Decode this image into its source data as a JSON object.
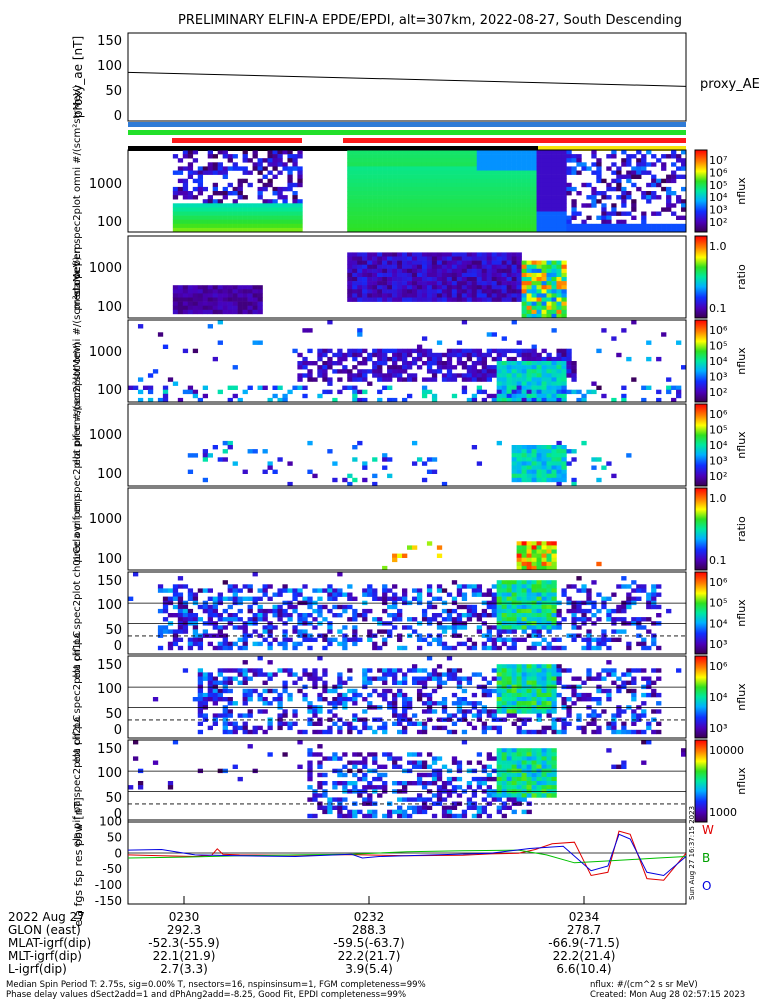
{
  "title": "PRELIMINARY ELFIN-A EPDE/EPDI, alt=307km, 2022-08-27, South Descending",
  "colors": {
    "bar_blue": "#2f7bd6",
    "bar_green": "#22e02a",
    "bar_red": "#ff1a1a",
    "bar_black": "#000000",
    "bar_yellow": "#f5e60a",
    "line_red": "#e00000",
    "line_green": "#00c000",
    "line_blue": "#0000e0"
  },
  "chart_data": [
    {
      "type": "line",
      "panel": "proxy_ae",
      "ylabel": "proxy_ae [nT]",
      "ytick_labels": [
        "150",
        "100",
        "50",
        "0"
      ],
      "ylim": [
        -10,
        160
      ],
      "right_label": "proxy_AE",
      "series": [
        {
          "name": "proxy_AE",
          "x": [
            0.0,
            1.0
          ],
          "values": [
            84,
            57
          ]
        }
      ]
    },
    {
      "type": "heatmap",
      "panel": "ela_pef_en_spec2plot_omni",
      "ylabel": "ela pef en spec2plot omni #/(scm²strMeV)",
      "ytick_labels": [
        "1000",
        "100"
      ],
      "colorbar": {
        "label": "nflux",
        "ticks": [
          "10⁷",
          "10⁶",
          "10⁵",
          "10⁴",
          "10³",
          "10²"
        ]
      }
    },
    {
      "type": "heatmap",
      "panel": "prec_ovr_perp_e",
      "ylabel": "prec ovr perp",
      "ytick_labels": [
        "1000",
        "100"
      ],
      "colorbar": {
        "label": "ratio",
        "ticks": [
          "1.0",
          "0.1"
        ]
      }
    },
    {
      "type": "heatmap",
      "panel": "ela_pif_en_spec2plot_omni",
      "ylabel": "ela pif en spec2plot omni #/(scm²strMeV)",
      "ytick_labels": [
        "1000",
        "100"
      ],
      "colorbar": {
        "label": "nflux",
        "ticks": [
          "10⁶",
          "10⁵",
          "10⁴",
          "10³",
          "10²"
        ]
      }
    },
    {
      "type": "heatmap",
      "panel": "ela_pif_en_spec2plot_prec",
      "ylabel": "ela pif en spec2plot prec #/(scm²strMeV)",
      "ytick_labels": [
        "1000",
        "100"
      ],
      "colorbar": {
        "label": "nflux",
        "ticks": [
          "10⁶",
          "10⁵",
          "10⁴",
          "10³",
          "10²"
        ]
      }
    },
    {
      "type": "heatmap",
      "panel": "prec_ovr_perp_i",
      "ylabel": "prec ovr perp",
      "ytick_labels": [
        "1000",
        "100"
      ],
      "colorbar": {
        "label": "ratio",
        "ticks": [
          "1.0",
          "0.1"
        ]
      }
    },
    {
      "type": "heatmap",
      "panel": "ela_pif_pa_spec2plot_ch0LC",
      "ylabel": "ela pif pa spec2plot ch0LC",
      "ytick_labels": [
        "150",
        "100",
        "50",
        "0"
      ],
      "colorbar": {
        "label": "nflux",
        "ticks": [
          "10⁶",
          "10⁵",
          "10⁴",
          "10³"
        ]
      }
    },
    {
      "type": "heatmap",
      "panel": "ela_pif_pa_spec2plot_ch1LC",
      "ylabel": "ela pif pa spec2plot ch1LC",
      "ytick_labels": [
        "150",
        "100",
        "50",
        "0"
      ],
      "colorbar": {
        "label": "nflux",
        "ticks": [
          "10⁶",
          "10⁴",
          "10³"
        ]
      }
    },
    {
      "type": "heatmap",
      "panel": "ela_pif_pa_spec2plot_ch2LC",
      "ylabel": "ela pif pa spec2plot ch2LC",
      "ytick_labels": [
        "150",
        "100",
        "50",
        "0"
      ],
      "colorbar": {
        "label": "nflux",
        "ticks": [
          "10000",
          "1000"
        ]
      }
    },
    {
      "type": "line",
      "panel": "ela_fgs_fsp_res_pbw",
      "ylabel": "ela fgs fsp res pbw [nT]",
      "ytick_labels": [
        "100",
        "50",
        "0",
        "-50",
        "-100",
        "-150"
      ],
      "ylim": [
        -160,
        105
      ],
      "right_labels": [
        "W",
        "B",
        "O"
      ],
      "side_text": "Sun Aug 27 16:37:15 2023",
      "series": [
        {
          "name": "W",
          "color_key": "line_red",
          "x": [
            0.0,
            0.06,
            0.12,
            0.15,
            0.16,
            0.17,
            0.2,
            0.3,
            0.4,
            0.5,
            0.6,
            0.65,
            0.7,
            0.73,
            0.76,
            0.8,
            0.83,
            0.86,
            0.88,
            0.9,
            0.93,
            0.96,
            1.0
          ],
          "values": [
            -5,
            -8,
            -10,
            -6,
            14,
            -3,
            -5,
            -6,
            -4,
            -8,
            -6,
            -2,
            0,
            12,
            30,
            35,
            -70,
            -60,
            70,
            60,
            -80,
            -85,
            0
          ]
        },
        {
          "name": "B",
          "color_key": "line_green",
          "x": [
            0.0,
            0.1,
            0.2,
            0.3,
            0.4,
            0.5,
            0.6,
            0.7,
            0.75,
            0.8,
            0.85,
            0.9,
            0.95,
            1.0
          ],
          "values": [
            -15,
            -12,
            -8,
            -5,
            -3,
            5,
            8,
            10,
            -5,
            -30,
            -25,
            -20,
            -15,
            -10
          ]
        },
        {
          "name": "O",
          "color_key": "line_blue",
          "x": [
            0.0,
            0.06,
            0.12,
            0.2,
            0.3,
            0.4,
            0.42,
            0.45,
            0.55,
            0.65,
            0.72,
            0.78,
            0.83,
            0.86,
            0.88,
            0.9,
            0.93,
            0.96,
            1.0
          ],
          "values": [
            10,
            12,
            -5,
            -8,
            -10,
            -3,
            -15,
            -10,
            -5,
            0,
            15,
            22,
            -55,
            -40,
            60,
            45,
            -60,
            -70,
            -10
          ]
        }
      ]
    }
  ],
  "time_axis": {
    "ticks": [
      "0230",
      "0232",
      "0234"
    ],
    "rows": [
      {
        "label": "2022 Aug 27",
        "values": [
          "0230",
          "0232",
          "0234"
        ]
      },
      {
        "label": "GLON (east)",
        "values": [
          "292.3",
          "288.3",
          "278.7"
        ]
      },
      {
        "label": "MLAT-igrf(dip)",
        "values": [
          "-52.3(-55.9)",
          "-59.5(-63.7)",
          "-66.9(-71.5)"
        ]
      },
      {
        "label": "MLT-igrf(dip)",
        "values": [
          "22.1(21.9)",
          "22.2(21.7)",
          "22.2(21.4)"
        ]
      },
      {
        "label": "L-igrf(dip)",
        "values": [
          "2.7(3.3)",
          "3.9(5.4)",
          "6.6(10.4)"
        ]
      }
    ]
  },
  "footer": {
    "left1": "Median Spin Period T: 2.75s, sig=0.00% T, nsectors=16, nspinsinsum=1, FGM completeness=99%",
    "left2": "Phase delay values dSect2add=1 and dPhAng2add=-8.25, Good Fit, EPDI completeness=99%",
    "right1": "nflux: #/(cm^2 s sr MeV)",
    "right2": "Created: Mon Aug 28 02:57:15 2023"
  }
}
